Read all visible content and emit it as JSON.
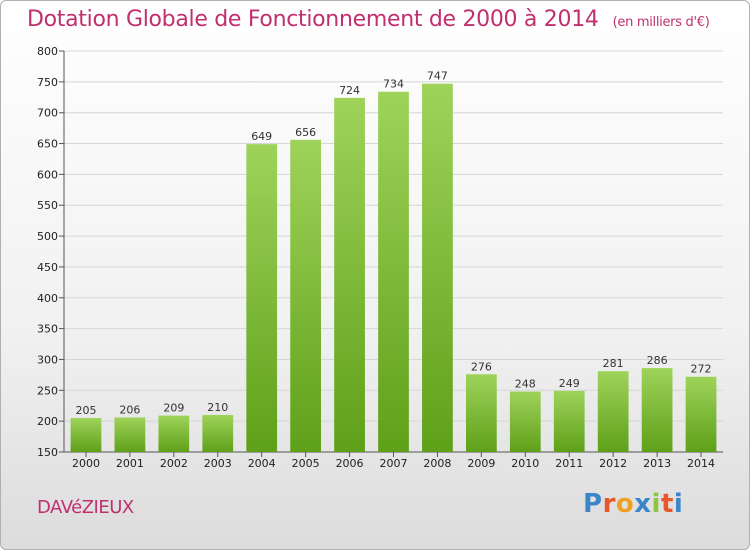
{
  "header": {
    "title": "Dotation Globale de Fonctionnement de 2000 à 2014",
    "unit": "(en milliers d'€)"
  },
  "footer": {
    "commune": "DAVéZIEUX",
    "logo_text": "Proxiti"
  },
  "colors": {
    "title": "#c0306e",
    "bar_top": "#9ed35a",
    "bar_bottom": "#5fa019",
    "logo_letters": [
      "#3a86c8",
      "#e8572a",
      "#f0a020",
      "#3a86c8",
      "#8cc63f",
      "#e8572a",
      "#3a86c8"
    ]
  },
  "chart_data": {
    "type": "bar",
    "title": "Dotation Globale de Fonctionnement de 2000 à 2014",
    "subtitle": "(en milliers d'€)",
    "categories": [
      "2000",
      "2001",
      "2002",
      "2003",
      "2004",
      "2005",
      "2006",
      "2007",
      "2008",
      "2009",
      "2010",
      "2011",
      "2012",
      "2013",
      "2014"
    ],
    "values": [
      205,
      206,
      209,
      210,
      649,
      656,
      724,
      734,
      747,
      276,
      248,
      249,
      281,
      286,
      272
    ],
    "ylim": [
      150,
      800
    ],
    "yticks": [
      150,
      200,
      250,
      300,
      350,
      400,
      450,
      500,
      550,
      600,
      650,
      700,
      750,
      800
    ],
    "grid": true,
    "xlabel": "",
    "ylabel": ""
  }
}
